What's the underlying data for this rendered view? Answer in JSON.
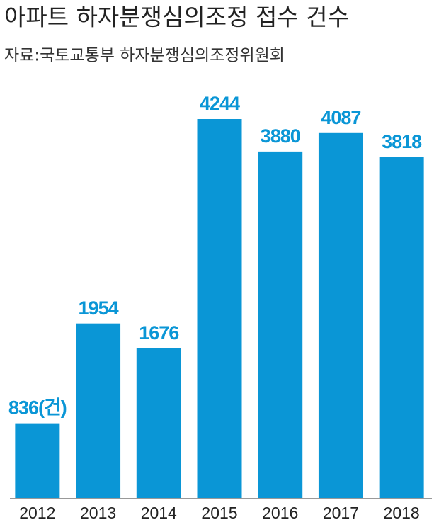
{
  "chart_data": {
    "type": "bar",
    "title": "아파트 하자분쟁심의조정 접수 건수",
    "subtitle": "자료:국토교통부 하자분쟁심의조정위원회",
    "categories": [
      "2012",
      "2013",
      "2014",
      "2015",
      "2016",
      "2017",
      "2018"
    ],
    "values": [
      836,
      1954,
      1676,
      4244,
      3880,
      4087,
      3818
    ],
    "value_labels": [
      "836(건)",
      "1954",
      "1676",
      "4244",
      "3880",
      "4087",
      "3818"
    ],
    "color": "#0a96d6"
  }
}
